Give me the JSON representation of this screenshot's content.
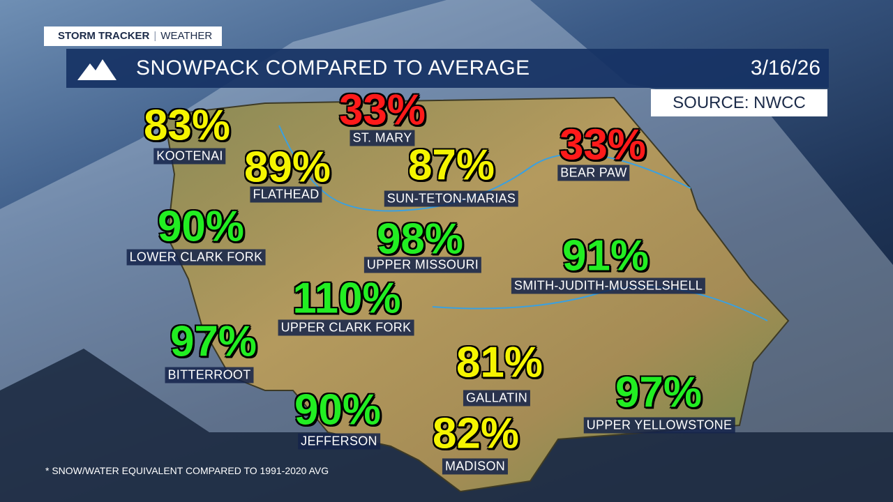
{
  "header": {
    "brand": "STORM TRACKER",
    "section": "WEATHER",
    "title": "SNOWPACK COMPARED TO AVERAGE",
    "date": "3/16/26",
    "source": "SOURCE: NWCC"
  },
  "regions": [
    {
      "name": "KOOTENAI",
      "percent": "83%",
      "color": "#f5f500"
    },
    {
      "name": "ST. MARY",
      "percent": "33%",
      "color": "#ff1a1a"
    },
    {
      "name": "BEAR PAW",
      "percent": "33%",
      "color": "#ff1a1a"
    },
    {
      "name": "FLATHEAD",
      "percent": "89%",
      "color": "#f5f500"
    },
    {
      "name": "SUN-TETON-MARIAS",
      "percent": "87%",
      "color": "#f5f500"
    },
    {
      "name": "LOWER CLARK FORK",
      "percent": "90%",
      "color": "#22ee22"
    },
    {
      "name": "UPPER MISSOURI",
      "percent": "98%",
      "color": "#22ee22"
    },
    {
      "name": "SMITH-JUDITH-MUSSELSHELL",
      "percent": "91%",
      "color": "#22ee22"
    },
    {
      "name": "UPPER CLARK FORK",
      "percent": "110%",
      "color": "#22ee22"
    },
    {
      "name": "BITTERROOT",
      "percent": "97%",
      "color": "#22ee22"
    },
    {
      "name": "GALLATIN",
      "percent": "81%",
      "color": "#f5f500"
    },
    {
      "name": "UPPER YELLOWSTONE",
      "percent": "97%",
      "color": "#22ee22"
    },
    {
      "name": "JEFFERSON",
      "percent": "90%",
      "color": "#22ee22"
    },
    {
      "name": "MADISON",
      "percent": "82%",
      "color": "#f5f500"
    }
  ],
  "footnote": "* SNOW/WATER EQUIVALENT COMPARED TO 1991-2020 AVG"
}
